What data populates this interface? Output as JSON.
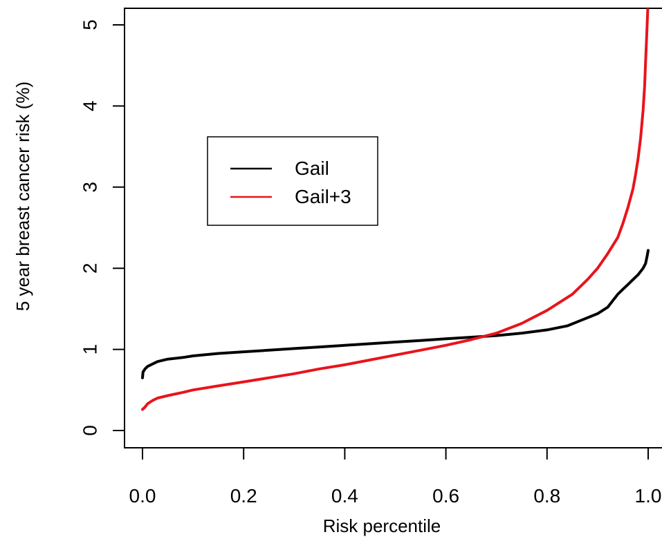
{
  "chart_data": {
    "type": "line",
    "title": "",
    "xlabel": "Risk percentile",
    "ylabel": "5 year breast cancer risk (%)",
    "xlim": [
      0,
      1
    ],
    "ylim": [
      0,
      5
    ],
    "xticks": [
      "0.0",
      "0.2",
      "0.4",
      "0.6",
      "0.8",
      "1.0"
    ],
    "yticks": [
      "0",
      "1",
      "2",
      "3",
      "4",
      "5"
    ],
    "grid": false,
    "legend_position": "upper-left",
    "series": [
      {
        "name": "Gail",
        "color": "#000000",
        "x": [
          0.0,
          0.001,
          0.005,
          0.01,
          0.02,
          0.03,
          0.05,
          0.08,
          0.1,
          0.15,
          0.2,
          0.25,
          0.3,
          0.35,
          0.4,
          0.45,
          0.5,
          0.55,
          0.6,
          0.65,
          0.7,
          0.75,
          0.8,
          0.84,
          0.86,
          0.88,
          0.9,
          0.92,
          0.93,
          0.94,
          0.95,
          0.96,
          0.97,
          0.98,
          0.99,
          0.995,
          0.998,
          1.0
        ],
        "y": [
          0.65,
          0.72,
          0.76,
          0.79,
          0.82,
          0.85,
          0.88,
          0.9,
          0.92,
          0.95,
          0.97,
          0.99,
          1.01,
          1.03,
          1.05,
          1.07,
          1.09,
          1.11,
          1.13,
          1.15,
          1.17,
          1.2,
          1.24,
          1.29,
          1.34,
          1.39,
          1.44,
          1.52,
          1.6,
          1.68,
          1.74,
          1.8,
          1.86,
          1.92,
          2.0,
          2.06,
          2.15,
          2.22
        ]
      },
      {
        "name": "Gail+3",
        "color": "#e8141c",
        "x": [
          0.0,
          0.005,
          0.01,
          0.02,
          0.03,
          0.05,
          0.08,
          0.1,
          0.15,
          0.2,
          0.25,
          0.3,
          0.35,
          0.4,
          0.45,
          0.5,
          0.55,
          0.6,
          0.65,
          0.7,
          0.75,
          0.8,
          0.85,
          0.88,
          0.9,
          0.92,
          0.94,
          0.95,
          0.96,
          0.97,
          0.975,
          0.98,
          0.985,
          0.99,
          0.993,
          0.995,
          0.997,
          0.998,
          1.0
        ],
        "y": [
          0.26,
          0.29,
          0.33,
          0.37,
          0.4,
          0.43,
          0.47,
          0.5,
          0.55,
          0.6,
          0.65,
          0.7,
          0.76,
          0.81,
          0.87,
          0.93,
          0.99,
          1.05,
          1.12,
          1.2,
          1.32,
          1.48,
          1.68,
          1.86,
          2.0,
          2.18,
          2.38,
          2.55,
          2.75,
          2.98,
          3.15,
          3.35,
          3.6,
          3.95,
          4.25,
          4.55,
          4.85,
          5.0,
          5.3
        ]
      }
    ]
  }
}
